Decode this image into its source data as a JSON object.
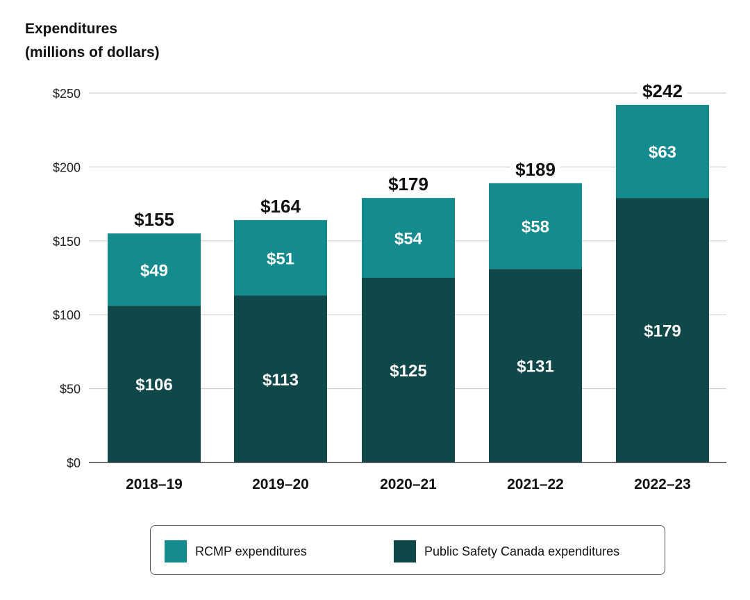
{
  "title_lines": [
    "Expenditures",
    "(millions of dollars)"
  ],
  "chart_data": {
    "type": "bar",
    "stacked": true,
    "title": "Expenditures (millions of dollars)",
    "categories": [
      "2018–19",
      "2019–20",
      "2020–21",
      "2021–22",
      "2022–23"
    ],
    "series": [
      {
        "name": "Public Safety Canada expenditures",
        "values": [
          106,
          113,
          125,
          131,
          179
        ],
        "labels": [
          "$106",
          "$113",
          "$125",
          "$131",
          "$179"
        ],
        "color": "#10484a"
      },
      {
        "name": "RCMP expenditures",
        "values": [
          49,
          51,
          54,
          58,
          63
        ],
        "labels": [
          "$49",
          "$51",
          "$54",
          "$58",
          "$63"
        ],
        "color": "#138b8f"
      }
    ],
    "totals": [
      155,
      164,
      179,
      189,
      242
    ],
    "total_labels": [
      "$155",
      "$164",
      "$179",
      "$189",
      "$242"
    ],
    "ylim": [
      0,
      250
    ],
    "yticks": [
      0,
      50,
      100,
      150,
      200,
      250
    ],
    "ytick_labels": [
      "$0",
      "$50",
      "$100",
      "$150",
      "$200",
      "$250"
    ],
    "grid": true,
    "legend_position": "bottom",
    "legend": [
      {
        "label": "RCMP expenditures",
        "color": "#138b8f"
      },
      {
        "label": "Public Safety Canada expenditures",
        "color": "#10484a"
      }
    ]
  }
}
